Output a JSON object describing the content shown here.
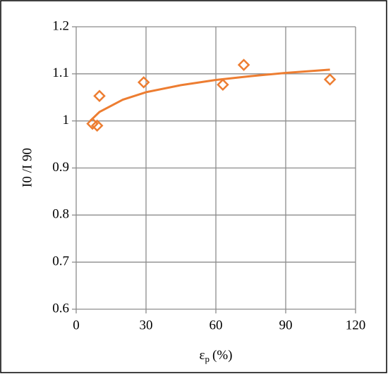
{
  "chart_data": {
    "type": "scatter",
    "y_label": "I0 /I 90",
    "x_label": {
      "symbol": "ε",
      "subscript": "p",
      "unit": "(%)"
    },
    "xlim": [
      0,
      120
    ],
    "xticks": [
      0,
      30,
      60,
      90,
      120
    ],
    "ylim": [
      0.6,
      1.2
    ],
    "yticks": [
      0.6,
      0.7,
      0.8,
      0.9,
      1,
      1.1,
      1.2
    ],
    "grid": true,
    "series": [
      {
        "color": "#ed7d31",
        "marker": "diamond",
        "x": [
          7,
          9,
          10,
          29,
          63,
          72,
          109
        ],
        "values": [
          0.994,
          0.99,
          1.053,
          1.082,
          1.077,
          1.119,
          1.088
        ]
      },
      {
        "color": "#ed7d31",
        "marker": "line",
        "x": [
          6,
          10,
          20,
          30,
          45,
          60,
          75,
          90,
          109
        ],
        "values": [
          1.0,
          1.019,
          1.045,
          1.061,
          1.076,
          1.087,
          1.095,
          1.102,
          1.109
        ]
      }
    ]
  }
}
